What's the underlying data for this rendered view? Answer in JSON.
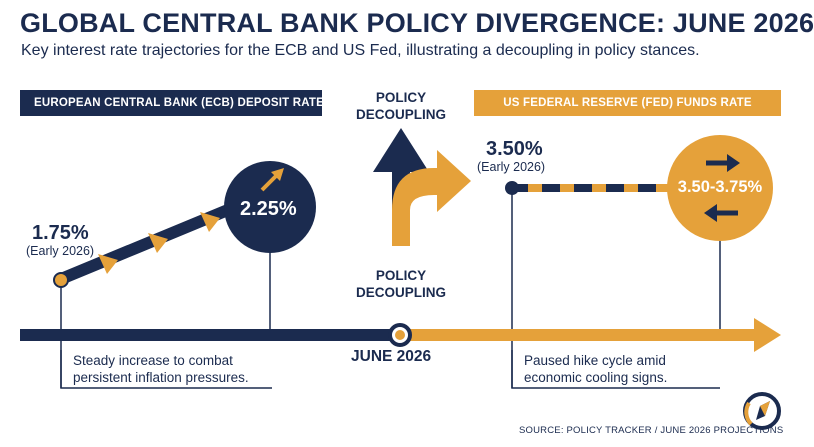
{
  "header": {
    "title": "GLOBAL CENTRAL BANK POLICY DIVERGENCE: JUNE 2026",
    "subtitle": "Key interest rate trajectories for the ECB and US Fed, illustrating a decoupling in policy stances."
  },
  "ecb": {
    "banner": "EUROPEAN CENTRAL BANK (ECB) DEPOSIT RATE",
    "start_value": "1.75%",
    "start_note": "(Early 2026)",
    "end_value": "2.25%",
    "description_line1": "Steady increase to combat",
    "description_line2": "persistent inflation pressures.",
    "color": "#1b2b4f"
  },
  "fed": {
    "banner": "US FEDERAL RESERVE (FED) FUNDS RATE",
    "start_value": "3.50%",
    "start_note": "(Early 2026)",
    "end_value": "3.50-3.75%",
    "description_line1": "Paused hike cycle amid",
    "description_line2": "economic cooling signs.",
    "color": "#e5a13a"
  },
  "center": {
    "top_label_line1": "POLICY",
    "top_label_line2": "DECOUPLING",
    "bottom_label_line1": "POLICY",
    "bottom_label_line2": "DECOUPLING",
    "date": "JUNE 2026"
  },
  "icons": {
    "up_right_arrow": "arrow-up-right-icon",
    "two_way_arrows": "arrows-left-right-icon",
    "compass_logo": "compass-logo-icon"
  },
  "footer": {
    "source": "SOURCE: POLICY TRACKER / JUNE 2026 PROJECTIONS"
  }
}
